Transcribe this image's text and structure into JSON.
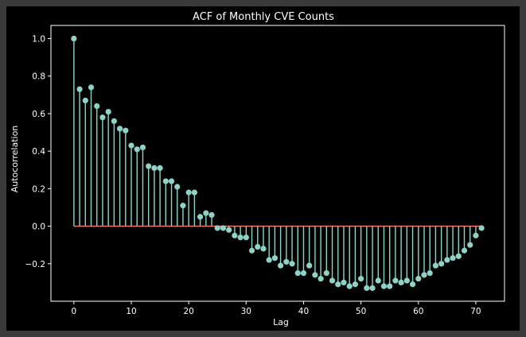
{
  "chart_data": {
    "type": "stem",
    "title": "ACF of Monthly CVE Counts",
    "xlabel": "Lag",
    "ylabel": "Autocorrelation",
    "xlim": [
      -4,
      75
    ],
    "ylim": [
      -0.4,
      1.07
    ],
    "xticks": [
      0,
      10,
      20,
      30,
      40,
      50,
      60,
      70
    ],
    "yticks": [
      -0.2,
      0.0,
      0.2,
      0.4,
      0.6,
      0.8,
      1.0
    ],
    "ytick_labels": [
      "−0.2",
      "0.0",
      "0.2",
      "0.4",
      "0.6",
      "0.8",
      "1.0"
    ],
    "grid": false,
    "colors": {
      "stem": "#8dd3c7",
      "baseline": "#fa8072",
      "background": "#000000",
      "text": "#ffffff"
    },
    "lags": [
      0,
      1,
      2,
      3,
      4,
      5,
      6,
      7,
      8,
      9,
      10,
      11,
      12,
      13,
      14,
      15,
      16,
      17,
      18,
      19,
      20,
      21,
      22,
      23,
      24,
      25,
      26,
      27,
      28,
      29,
      30,
      31,
      32,
      33,
      34,
      35,
      36,
      37,
      38,
      39,
      40,
      41,
      42,
      43,
      44,
      45,
      46,
      47,
      48,
      49,
      50,
      51,
      52,
      53,
      54,
      55,
      56,
      57,
      58,
      59,
      60,
      61,
      62,
      63,
      64,
      65,
      66,
      67,
      68,
      69,
      70,
      71
    ],
    "values": [
      1.0,
      0.73,
      0.67,
      0.74,
      0.64,
      0.58,
      0.61,
      0.56,
      0.52,
      0.51,
      0.43,
      0.41,
      0.42,
      0.32,
      0.31,
      0.31,
      0.24,
      0.24,
      0.21,
      0.11,
      0.18,
      0.18,
      0.05,
      0.07,
      0.06,
      -0.01,
      -0.01,
      -0.02,
      -0.05,
      -0.06,
      -0.06,
      -0.13,
      -0.11,
      -0.12,
      -0.18,
      -0.17,
      -0.21,
      -0.19,
      -0.2,
      -0.25,
      -0.25,
      -0.21,
      -0.26,
      -0.28,
      -0.25,
      -0.29,
      -0.31,
      -0.3,
      -0.32,
      -0.31,
      -0.28,
      -0.33,
      -0.33,
      -0.29,
      -0.32,
      -0.32,
      -0.29,
      -0.3,
      -0.29,
      -0.31,
      -0.28,
      -0.26,
      -0.25,
      -0.21,
      -0.2,
      -0.18,
      -0.17,
      -0.16,
      -0.13,
      -0.1,
      -0.05,
      -0.01
    ]
  }
}
